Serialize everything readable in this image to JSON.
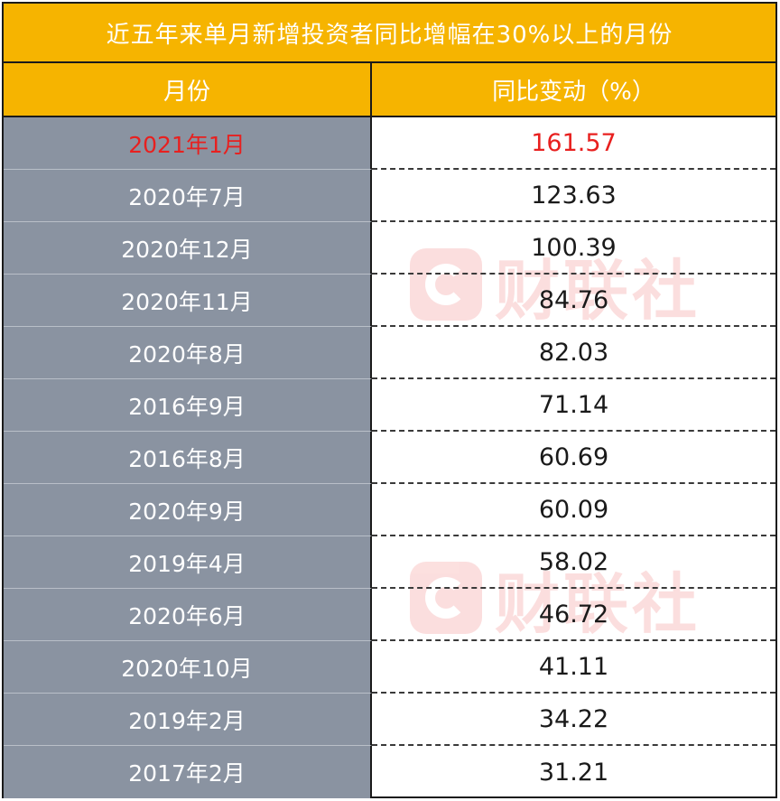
{
  "title": "近五年来单月新增投资者同比增幅在30%以上的月份",
  "headers": {
    "month": "月份",
    "change": "同比变动（%）"
  },
  "rows": [
    {
      "month": "2021年1月",
      "change": "161.57"
    },
    {
      "month": "2020年7月",
      "change": "123.63"
    },
    {
      "month": "2020年12月",
      "change": "100.39"
    },
    {
      "month": "2020年11月",
      "change": "84.76"
    },
    {
      "month": "2020年8月",
      "change": "82.03"
    },
    {
      "month": "2016年9月",
      "change": "71.14"
    },
    {
      "month": "2016年8月",
      "change": "60.69"
    },
    {
      "month": "2020年9月",
      "change": "60.09"
    },
    {
      "month": "2019年4月",
      "change": "58.02"
    },
    {
      "month": "2020年6月",
      "change": "46.72"
    },
    {
      "month": "2020年10月",
      "change": "41.11"
    },
    {
      "month": "2019年2月",
      "change": "34.22"
    },
    {
      "month": "2017年2月",
      "change": "31.21"
    }
  ],
  "watermark": {
    "text": "财联社",
    "icon": "cailian-logo-icon"
  },
  "colors": {
    "header_bg": "#f6b400",
    "month_bg": "#8a93a1",
    "highlight": "#e8201f",
    "watermark": "#e8201f"
  },
  "chart_data": {
    "type": "table",
    "title": "近五年来单月新增投资者同比增幅在30%以上的月份",
    "columns": [
      "月份",
      "同比变动（%）"
    ],
    "categories": [
      "2021年1月",
      "2020年7月",
      "2020年12月",
      "2020年11月",
      "2020年8月",
      "2016年9月",
      "2016年8月",
      "2020年9月",
      "2019年4月",
      "2020年6月",
      "2020年10月",
      "2019年2月",
      "2017年2月"
    ],
    "values": [
      161.57,
      123.63,
      100.39,
      84.76,
      82.03,
      71.14,
      60.69,
      60.09,
      58.02,
      46.72,
      41.11,
      34.22,
      31.21
    ]
  }
}
